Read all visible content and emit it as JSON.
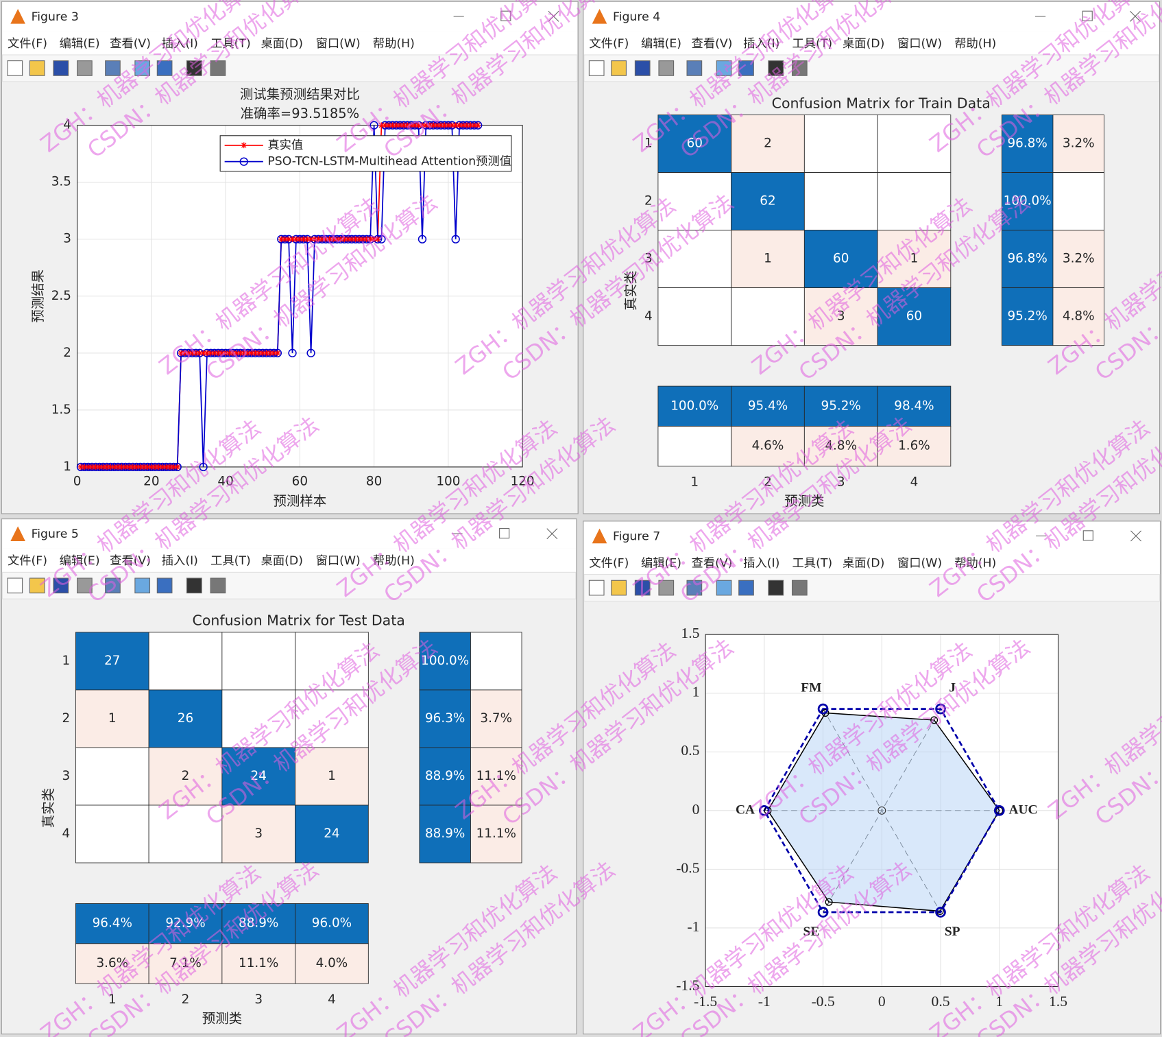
{
  "watermarks": [
    "ZGH：机器学习和优化算法",
    "CSDN：机器学习和优化算法"
  ],
  "menus": [
    "文件(F)",
    "编辑(E)",
    "查看(V)",
    "插入(I)",
    "工具(T)",
    "桌面(D)",
    "窗口(W)",
    "帮助(H)"
  ],
  "windows": [
    {
      "title": "Figure 3",
      "chart_data": {
        "type": "line",
        "title": [
          "测试集预测结果对比",
          "准确率=93.5185%"
        ],
        "xlabel": "预测样本",
        "ylabel": "预测结果",
        "xlim": [
          0,
          120
        ],
        "xticks": [
          0,
          20,
          40,
          60,
          80,
          100,
          120
        ],
        "ylim": [
          1,
          4
        ],
        "yticks": [
          1,
          1.5,
          2,
          2.5,
          3,
          3.5,
          4
        ],
        "grid": true,
        "legend": "upper right",
        "x": [
          1,
          2,
          3,
          4,
          5,
          6,
          7,
          8,
          9,
          10,
          11,
          12,
          13,
          14,
          15,
          16,
          17,
          18,
          19,
          20,
          21,
          22,
          23,
          24,
          25,
          26,
          27,
          28,
          29,
          30,
          31,
          32,
          33,
          34,
          35,
          36,
          37,
          38,
          39,
          40,
          41,
          42,
          43,
          44,
          45,
          46,
          47,
          48,
          49,
          50,
          51,
          52,
          53,
          54,
          55,
          56,
          57,
          58,
          59,
          60,
          61,
          62,
          63,
          64,
          65,
          66,
          67,
          68,
          69,
          70,
          71,
          72,
          73,
          74,
          75,
          76,
          77,
          78,
          79,
          80,
          81,
          82,
          83,
          84,
          85,
          86,
          87,
          88,
          89,
          90,
          91,
          92,
          93,
          94,
          95,
          96,
          97,
          98,
          99,
          100,
          101,
          102,
          103,
          104,
          105,
          106,
          107,
          108
        ],
        "series": [
          {
            "name": "真实值",
            "color": "#ff0000",
            "marker": "*",
            "values": [
              1,
              1,
              1,
              1,
              1,
              1,
              1,
              1,
              1,
              1,
              1,
              1,
              1,
              1,
              1,
              1,
              1,
              1,
              1,
              1,
              1,
              1,
              1,
              1,
              1,
              1,
              1,
              2,
              2,
              2,
              2,
              2,
              2,
              2,
              2,
              2,
              2,
              2,
              2,
              2,
              2,
              2,
              2,
              2,
              2,
              2,
              2,
              2,
              2,
              2,
              2,
              2,
              2,
              2,
              3,
              3,
              3,
              3,
              3,
              3,
              3,
              3,
              3,
              3,
              3,
              3,
              3,
              3,
              3,
              3,
              3,
              3,
              3,
              3,
              3,
              3,
              3,
              3,
              3,
              3,
              3,
              4,
              4,
              4,
              4,
              4,
              4,
              4,
              4,
              4,
              4,
              4,
              4,
              4,
              4,
              4,
              4,
              4,
              4,
              4,
              4,
              4,
              4,
              4,
              4,
              4,
              4,
              4
            ]
          },
          {
            "name": "PSO-TCN-LSTM-Multihead Attention预测值",
            "color": "#0000cc",
            "marker": "o",
            "values": [
              1,
              1,
              1,
              1,
              1,
              1,
              1,
              1,
              1,
              1,
              1,
              1,
              1,
              1,
              1,
              1,
              1,
              1,
              1,
              1,
              1,
              1,
              1,
              1,
              1,
              1,
              1,
              2,
              2,
              2,
              2,
              2,
              2,
              1,
              2,
              2,
              2,
              2,
              2,
              2,
              2,
              2,
              2,
              2,
              2,
              2,
              2,
              2,
              2,
              2,
              2,
              2,
              2,
              2,
              3,
              3,
              3,
              2,
              3,
              3,
              3,
              3,
              2,
              3,
              3,
              3,
              3,
              3,
              3,
              3,
              3,
              3,
              3,
              3,
              3,
              3,
              3,
              3,
              3,
              4,
              3,
              3,
              4,
              4,
              4,
              4,
              4,
              4,
              4,
              4,
              4,
              4,
              3,
              4,
              4,
              4,
              4,
              4,
              4,
              4,
              4,
              3,
              4,
              4,
              4,
              4,
              4,
              4
            ]
          }
        ]
      }
    },
    {
      "title": "Figure 4",
      "chart_data": {
        "type": "confusion",
        "title": "Confusion Matrix for Train Data",
        "xlabel": "预测类",
        "ylabel": "真实类",
        "classes": [
          "1",
          "2",
          "3",
          "4"
        ],
        "matrix": [
          [
            60,
            2,
            null,
            null
          ],
          [
            null,
            62,
            null,
            null
          ],
          [
            null,
            1,
            60,
            1
          ],
          [
            null,
            null,
            3,
            60
          ]
        ],
        "row_summary": [
          [
            "96.8%",
            "3.2%"
          ],
          [
            "100.0%",
            null
          ],
          [
            "96.8%",
            "3.2%"
          ],
          [
            "95.2%",
            "4.8%"
          ]
        ],
        "column_summary": [
          [
            "100.0%",
            "95.4%",
            "95.2%",
            "98.4%"
          ],
          [
            null,
            "4.6%",
            "4.8%",
            "1.6%"
          ]
        ]
      }
    },
    {
      "title": "Figure 5",
      "chart_data": {
        "type": "confusion",
        "title": "Confusion Matrix for Test Data",
        "xlabel": "预测类",
        "ylabel": "真实类",
        "classes": [
          "1",
          "2",
          "3",
          "4"
        ],
        "matrix": [
          [
            27,
            null,
            null,
            null
          ],
          [
            1,
            26,
            null,
            null
          ],
          [
            null,
            2,
            24,
            1
          ],
          [
            null,
            null,
            3,
            24
          ]
        ],
        "row_summary": [
          [
            "100.0%",
            null
          ],
          [
            "96.3%",
            "3.7%"
          ],
          [
            "88.9%",
            "11.1%"
          ],
          [
            "88.9%",
            "11.1%"
          ]
        ],
        "column_summary": [
          [
            "96.4%",
            "92.9%",
            "88.9%",
            "96.0%"
          ],
          [
            "3.6%",
            "7.1%",
            "11.1%",
            "4.0%"
          ]
        ]
      }
    },
    {
      "title": "Figure 7",
      "chart_data": {
        "type": "radar",
        "labels": [
          "FM",
          "J",
          "AUC",
          "SP",
          "SE",
          "CA"
        ],
        "xlim": [
          -1.5,
          1.5
        ],
        "xticks": [
          -1.5,
          -1,
          -0.5,
          0,
          0.5,
          1,
          1.5
        ],
        "ylim": [
          -1.5,
          1.5
        ],
        "yticks": [
          -1.5,
          -1,
          -0.5,
          0,
          0.5,
          1,
          1.5
        ],
        "grid": true,
        "series": [
          {
            "color": "#000000",
            "values": [
              0.96,
              0.89,
              1.0,
              0.99,
              0.9,
              0.97
            ]
          },
          {
            "color": "#0000aa",
            "values": [
              1,
              1,
              1,
              1,
              1,
              1
            ]
          }
        ]
      }
    }
  ]
}
